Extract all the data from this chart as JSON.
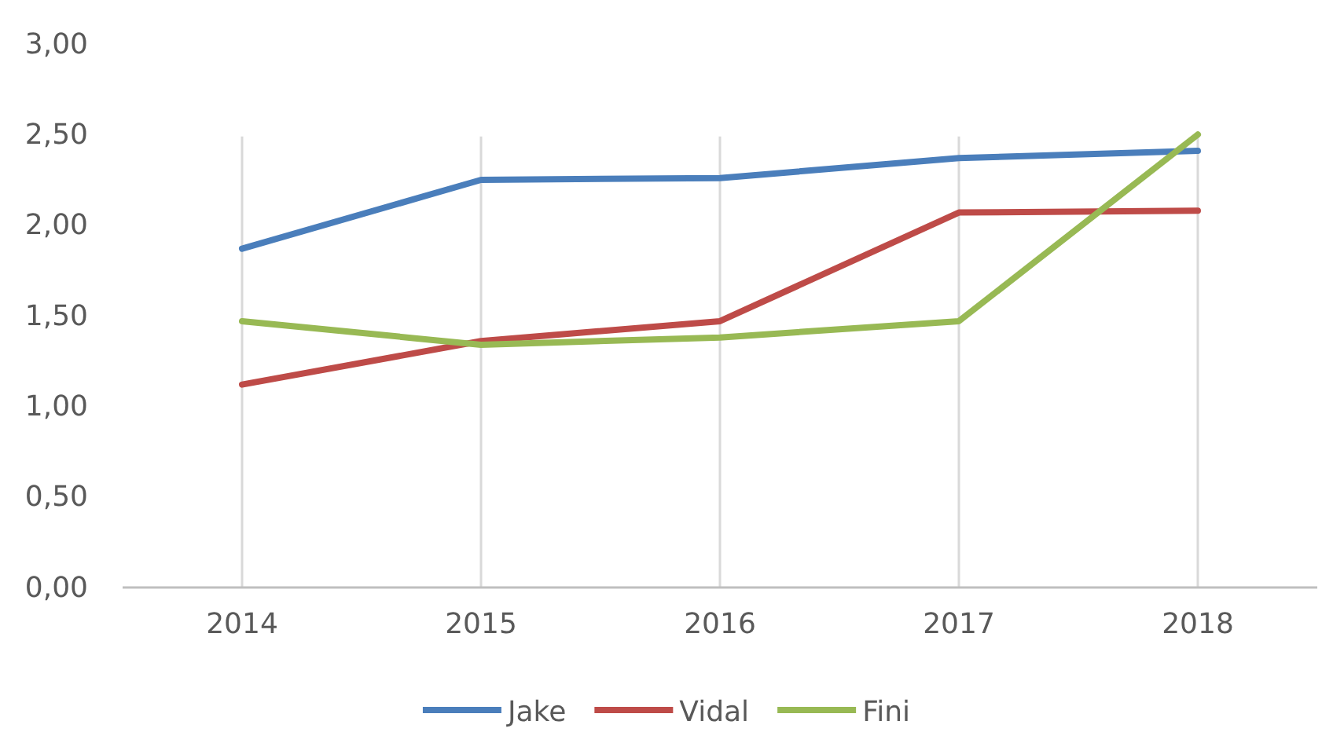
{
  "chart_data": {
    "type": "line",
    "categories": [
      "2014",
      "2015",
      "2016",
      "2017",
      "2018"
    ],
    "series": [
      {
        "name": "Jake",
        "color": "#4a7ebb",
        "values": [
          1.87,
          2.25,
          2.26,
          2.37,
          2.41
        ]
      },
      {
        "name": "Vidal",
        "color": "#be4b48",
        "values": [
          1.12,
          1.36,
          1.47,
          2.07,
          2.08
        ]
      },
      {
        "name": "Fini",
        "color": "#98b954",
        "values": [
          1.47,
          1.34,
          1.38,
          1.47,
          2.5
        ]
      }
    ],
    "ylim": [
      0,
      3
    ],
    "yticks": [
      {
        "value": 0,
        "label": "0,00"
      },
      {
        "value": 0.5,
        "label": "0,50"
      },
      {
        "value": 1,
        "label": "1,00"
      },
      {
        "value": 1.5,
        "label": "1,50"
      },
      {
        "value": 2,
        "label": "2,00"
      },
      {
        "value": 2.5,
        "label": "2,50"
      },
      {
        "value": 3,
        "label": "3,00"
      }
    ],
    "grid": "x",
    "legend": "bottom",
    "marker": "none",
    "line_style": "solid"
  }
}
